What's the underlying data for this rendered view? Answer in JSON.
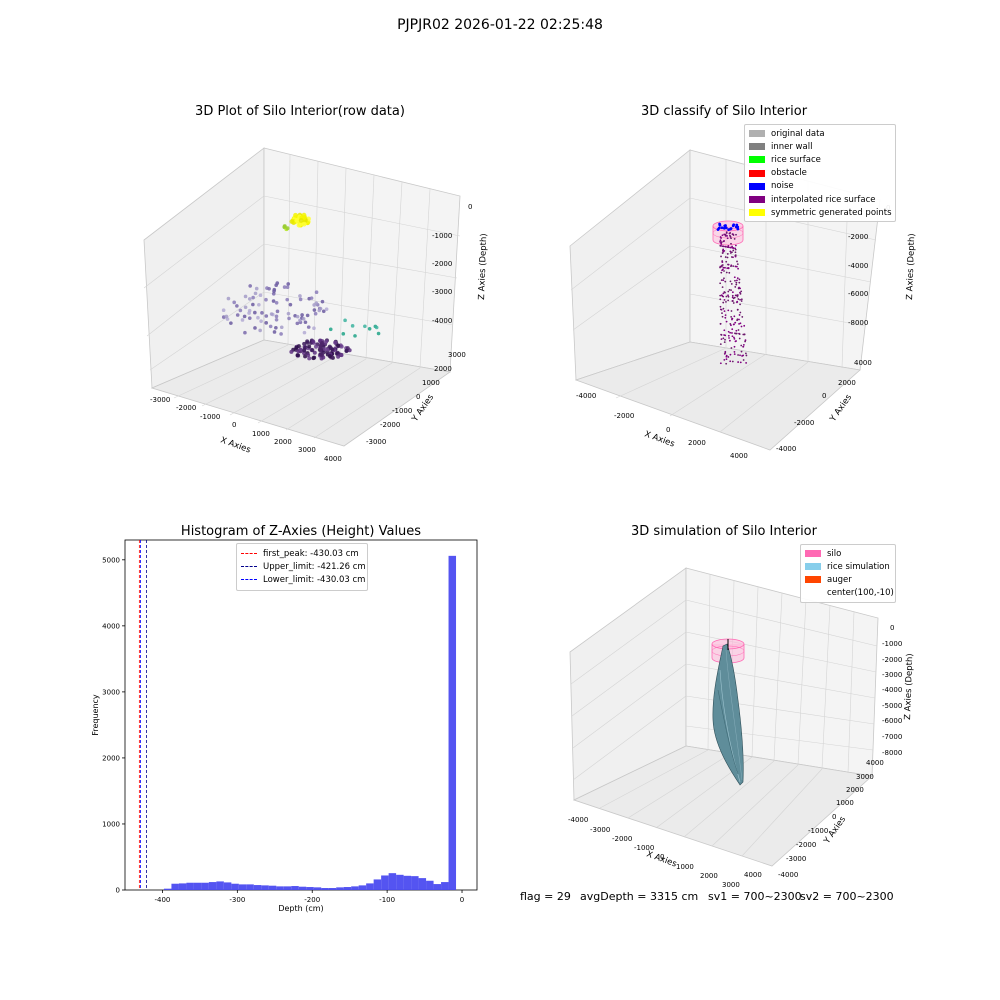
{
  "suptitle": "PJPJR02 2026-01-22 02:25:48",
  "status": {
    "flag": "flag = 29",
    "avg_depth": "avgDepth = 3315 cm",
    "sv1": "sv1 = 700~2300",
    "sv2": "sv2 = 700~2300"
  },
  "panels": {
    "raw": {
      "title": "3D Plot of Silo Interior(row data)",
      "xlabel": "X Axies",
      "ylabel": "Y Axies",
      "zlabel": "Z Axies (Depth)",
      "x_ticks": [
        "-3000",
        "-2000",
        "-1000",
        "0",
        "1000",
        "2000",
        "3000",
        "4000"
      ],
      "y_ticks": [
        "-3000",
        "-2000",
        "-1000",
        "0",
        "1000",
        "2000",
        "3000"
      ],
      "z_ticks": [
        "0",
        "-1000",
        "-2000",
        "-3000",
        "-4000"
      ]
    },
    "classify": {
      "title": "3D classify of Silo Interior",
      "xlabel": "X Axies",
      "ylabel": "Y Axies",
      "zlabel": "Z Axies (Depth)",
      "x_ticks": [
        "-4000",
        "-2000",
        "0",
        "2000",
        "4000"
      ],
      "y_ticks": [
        "-4000",
        "-2000",
        "0",
        "2000",
        "4000"
      ],
      "z_ticks": [
        "0",
        "-2000",
        "-4000",
        "-6000",
        "-8000"
      ],
      "legend": [
        {
          "label": "original data",
          "color": "#b0b0b0"
        },
        {
          "label": "inner wall",
          "color": "#808080"
        },
        {
          "label": "rice surface",
          "color": "#00ff00"
        },
        {
          "label": "obstacle",
          "color": "#ff0000"
        },
        {
          "label": "noise",
          "color": "#0000ff"
        },
        {
          "label": "interpolated rice surface",
          "color": "#800080"
        },
        {
          "label": "symmetric generated points",
          "color": "#ffff00"
        }
      ]
    },
    "simulation": {
      "title": "3D simulation of Silo Interior",
      "xlabel": "X Axies",
      "ylabel": "Y Axies",
      "zlabel": "Z Axies (Depth)",
      "x_ticks": [
        "-4000",
        "-3000",
        "-2000",
        "-1000",
        "0",
        "1000",
        "2000",
        "3000",
        "4000"
      ],
      "y_ticks": [
        "-4000",
        "-3000",
        "-2000",
        "-1000",
        "0",
        "1000",
        "2000",
        "3000",
        "4000"
      ],
      "z_ticks": [
        "0",
        "-1000",
        "-2000",
        "-3000",
        "-4000",
        "-5000",
        "-6000",
        "-7000",
        "-8000"
      ],
      "legend": [
        {
          "label": "silo",
          "color": "#ff69b4"
        },
        {
          "label": "rice simulation",
          "color": "#87ceeb"
        },
        {
          "label": "auger",
          "color": "#ff4500"
        },
        {
          "label": "center(100,-10)",
          "color": ""
        }
      ]
    }
  },
  "chart_data": {
    "type": "bar",
    "title": "Histogram of Z-Axies (Height) Values",
    "xlabel": "Depth (cm)",
    "ylabel": "Frequency",
    "xlim": [
      -450,
      20
    ],
    "ylim": [
      0,
      5300
    ],
    "x_ticks": [
      -400,
      -300,
      -200,
      -100,
      0
    ],
    "y_ticks": [
      0,
      1000,
      2000,
      3000,
      4000,
      5000
    ],
    "bar_color": "#4b4bf0",
    "bins": {
      "start": -398,
      "width": 10,
      "values": [
        20,
        95,
        100,
        110,
        110,
        110,
        120,
        130,
        115,
        95,
        85,
        85,
        75,
        70,
        65,
        55,
        55,
        60,
        50,
        45,
        40,
        30,
        30,
        40,
        45,
        55,
        70,
        100,
        160,
        220,
        255,
        230,
        215,
        210,
        180,
        140,
        90,
        120,
        5060
      ]
    },
    "lines": [
      {
        "name": "first_peak: -430.03 cm",
        "x": -430.03,
        "color": "#ff0000"
      },
      {
        "name": "Upper_limit: -421.26 cm",
        "x": -421.26,
        "color": "#00008b"
      },
      {
        "name": "Lower_limit: -430.03 cm",
        "x": -430.03,
        "color": "#0000ff"
      }
    ]
  }
}
